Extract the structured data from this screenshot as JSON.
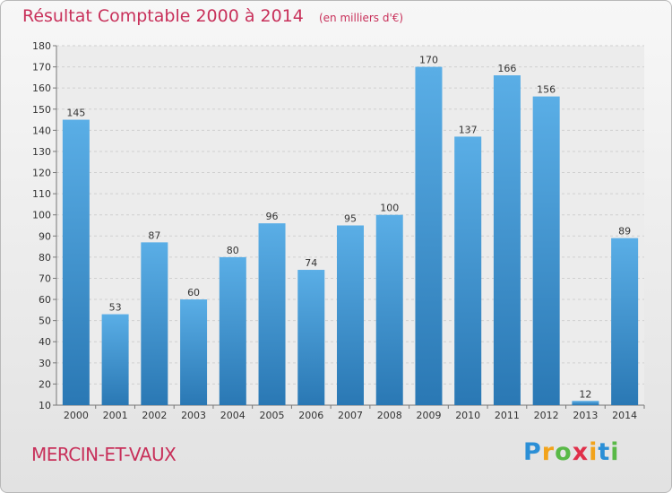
{
  "header": {
    "title": "Résultat Comptable 2000 à 2014",
    "unit": "(en milliers d'€)"
  },
  "footer": {
    "municipality": "MERCIN-ET-VAUX",
    "logo": {
      "letters": [
        "P",
        "r",
        "o",
        "x",
        "i",
        "t",
        "i"
      ],
      "colors": [
        "#2b8fd6",
        "#f2a31b",
        "#59b947",
        "#e0304a",
        "#f2a31b",
        "#2b8fd6",
        "#59b947"
      ]
    }
  },
  "chart_data": {
    "type": "bar",
    "categories": [
      "2000",
      "2001",
      "2002",
      "2003",
      "2004",
      "2005",
      "2006",
      "2007",
      "2008",
      "2009",
      "2010",
      "2011",
      "2012",
      "2013",
      "2014"
    ],
    "values": [
      145,
      53,
      87,
      60,
      80,
      96,
      74,
      95,
      100,
      170,
      137,
      166,
      156,
      12,
      89
    ],
    "title": "Résultat Comptable 2000 à 2014",
    "xlabel": "",
    "ylabel": "",
    "ylim": [
      10,
      180
    ],
    "yticks": [
      10,
      20,
      30,
      40,
      50,
      60,
      70,
      80,
      90,
      100,
      110,
      120,
      130,
      140,
      150,
      160,
      170,
      180
    ],
    "grid": true,
    "bar_color_top": "#5aaee6",
    "bar_color_bottom": "#2a78b4"
  }
}
